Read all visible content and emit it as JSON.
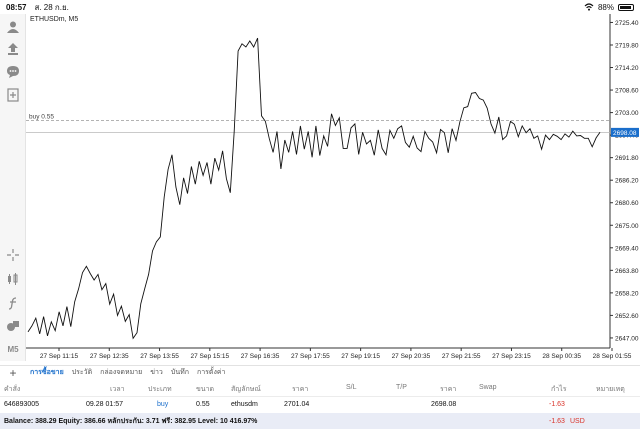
{
  "status_bar": {
    "time": "08:57",
    "date": "ส. 28 ก.ย.",
    "battery": "88%"
  },
  "chart": {
    "symbol_label": "ETHUSDm, M5",
    "order_line_label": "buy 0.55",
    "current_price": "2698.08"
  },
  "chart_data": {
    "type": "line",
    "title": "ETHUSDm, M5",
    "x_labels": [
      "27 Sep 11:15",
      "27 Sep 12:35",
      "27 Sep 13:55",
      "27 Sep 15:15",
      "27 Sep 16:35",
      "27 Sep 17:55",
      "27 Sep 19:15",
      "27 Sep 20:35",
      "27 Sep 21:55",
      "27 Sep 23:15",
      "28 Sep 00:35",
      "28 Sep 01:55"
    ],
    "y_ticks": [
      "2725.40",
      "2719.80",
      "2714.20",
      "2708.60",
      "2703.00",
      "2697.40",
      "2691.80",
      "2686.20",
      "2680.60",
      "2675.00",
      "2669.40",
      "2663.80",
      "2658.20",
      "2652.60",
      "2647.00"
    ],
    "ylim": [
      2644.5,
      2727.5
    ],
    "order_line": {
      "label": "buy 0.55",
      "price": 2701.04
    },
    "current_price": 2698.08,
    "series": [
      {
        "values": [
          2648.5,
          2650.0,
          2651.9,
          2648.0,
          2652.3,
          2647.5,
          2651.0,
          2648.8,
          2653.5,
          2650.0,
          2654.8,
          2649.8,
          2656.0,
          2659.2,
          2663.2,
          2664.8,
          2663.0,
          2661.4,
          2662.8,
          2659.0,
          2660.5,
          2655.4,
          2657.9,
          2652.6,
          2654.9,
          2651.1,
          2652.8,
          2646.9,
          2648.3,
          2655.5,
          2659.2,
          2662.8,
          2668.6,
          2670.9,
          2672.1,
          2682.0,
          2688.9,
          2692.5,
          2684.5,
          2680.1,
          2686.8,
          2682.9,
          2689.6,
          2685.2,
          2690.9,
          2687.4,
          2690.6,
          2685.2,
          2691.7,
          2688.7,
          2693.5,
          2686.6,
          2683.1,
          2698.3,
          2718.3,
          2720.1,
          2719.3,
          2720.8,
          2719.3,
          2721.5,
          2702.2,
          2700.8,
          2696.5,
          2693.1,
          2698.3,
          2689.0,
          2696.2,
          2693.1,
          2698.3,
          2692.6,
          2699.7,
          2693.9,
          2698.3,
          2691.9,
          2699.7,
          2692.3,
          2697.2,
          2694.6,
          2702.7,
          2699.8,
          2701.7,
          2694.1,
          2694.1,
          2699.2,
          2700.2,
          2692.6,
          2698.1,
          2695.2,
          2696.1,
          2692.4,
          2698.7,
          2694.1,
          2692.5,
          2698.6,
          2696.6,
          2699.0,
          2699.7,
          2695.6,
          2694.4,
          2697.1,
          2694.2,
          2693.3,
          2698.3,
          2696.6,
          2695.7,
          2693.0,
          2698.8,
          2698.0,
          2693.0,
          2699.0,
          2696.1,
          2700.7,
          2704.2,
          2704.5,
          2707.8,
          2708.0,
          2706.5,
          2706.1,
          2704.1,
          2700.2,
          2697.9,
          2701.9,
          2696.3,
          2697.2,
          2700.8,
          2700.1,
          2697.0,
          2699.7,
          2698.0,
          2699.0,
          2696.6,
          2697.2,
          2693.9,
          2697.4,
          2696.3,
          2697.6,
          2697.1,
          2696.3,
          2697.7,
          2696.9,
          2698.4,
          2697.2,
          2697.3,
          2696.6,
          2696.6,
          2694.5,
          2696.7,
          2698.1
        ]
      }
    ]
  },
  "toolbar_icons": [
    "account-icon",
    "trade-icon",
    "chat-icon",
    "new-order-icon",
    "crosshair-icon",
    "chart-type-icon",
    "indicators-icon",
    "objects-icon",
    "timeframe-label"
  ],
  "timeframe": "M5",
  "tabs": [
    "การซื้อขาย",
    "ประวัติ",
    "กล่องจดหมาย",
    "ข่าว",
    "บันทึก",
    "การตั้งค่า"
  ],
  "orders_table": {
    "headers": [
      "คำสั่ง",
      "เวลา",
      "ประเภท",
      "ขนาด",
      "สัญลักษณ์",
      "ราคา",
      "S/L",
      "T/P",
      "ราคา",
      "Swap",
      "กำไร",
      "หมายเหตุ"
    ],
    "rows": [
      {
        "order": "646893005",
        "time": "09.28 01:57",
        "type": "buy",
        "size": "0.55",
        "symbol": "ethusdm",
        "open_price": "2701.04",
        "sl": "",
        "tp": "",
        "price": "2698.08",
        "swap": "",
        "profit": "-1.63",
        "comment": ""
      }
    ]
  },
  "balance_bar": {
    "text": "Balance: 388.29 Equity: 386.66 หลักประกัน: 3.71 ฟรี: 382.95 Level: 10 416.97%",
    "total": "-1.63",
    "currency": "USD"
  },
  "colors": {
    "accent": "#1a6ecb",
    "loss": "#d9342b",
    "line": "#111111"
  }
}
